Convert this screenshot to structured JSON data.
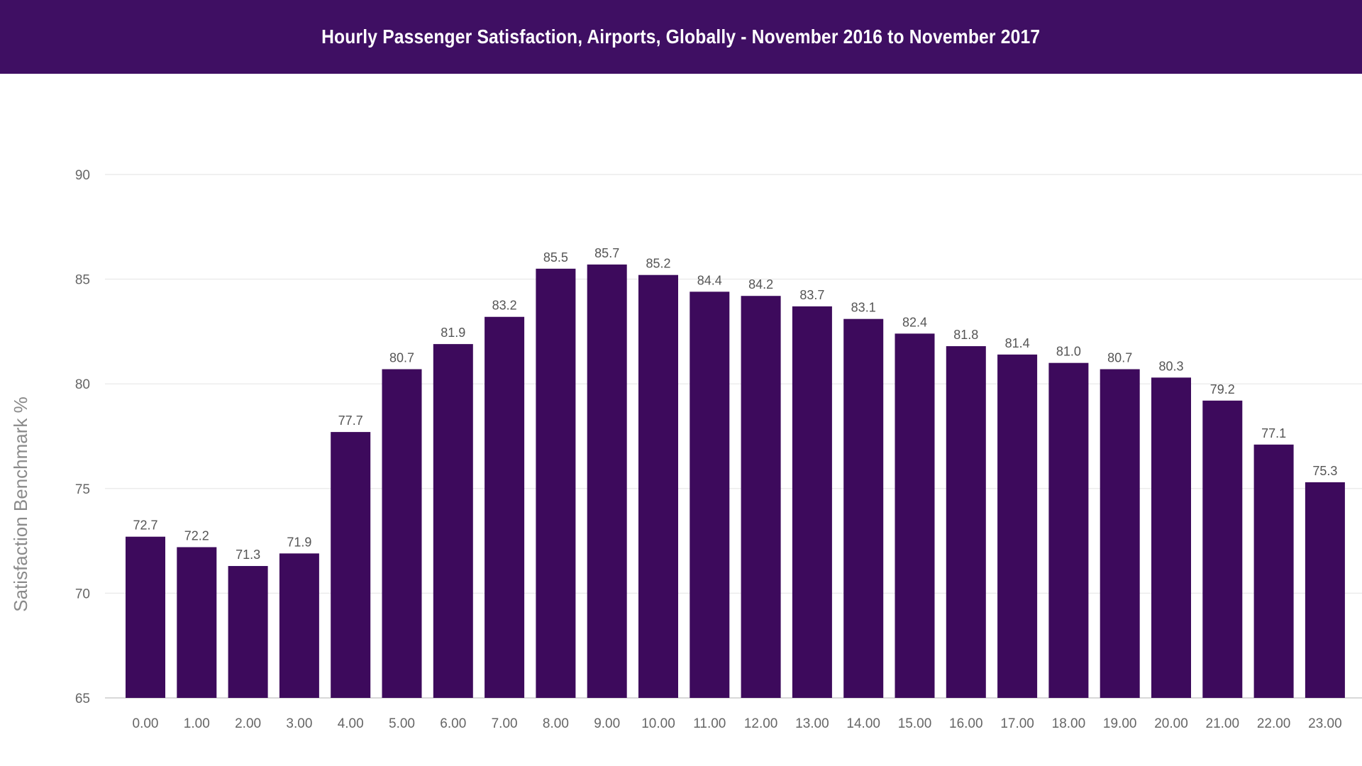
{
  "header": {
    "title": "Hourly Passenger Satisfaction, Airports, Globally - November 2016 to November 2017"
  },
  "colors": {
    "banner": "#3f0f63",
    "bar": "#3d0a5c",
    "grid": "#ececec",
    "axis": "#d8d8d8"
  },
  "chart_data": {
    "type": "bar",
    "title": "Hourly Passenger Satisfaction, Airports, Globally - November 2016 to November 2017",
    "xlabel": "",
    "ylabel": "Satisfaction Benchmark %",
    "ylim": [
      65,
      90
    ],
    "yticks": [
      65,
      70,
      75,
      80,
      85,
      90
    ],
    "grid": true,
    "categories": [
      "0.00",
      "1.00",
      "2.00",
      "3.00",
      "4.00",
      "5.00",
      "6.00",
      "7.00",
      "8.00",
      "9.00",
      "10.00",
      "11.00",
      "12.00",
      "13.00",
      "14.00",
      "15.00",
      "16.00",
      "17.00",
      "18.00",
      "19.00",
      "20.00",
      "21.00",
      "22.00",
      "23.00"
    ],
    "values": [
      72.7,
      72.2,
      71.3,
      71.9,
      77.7,
      80.7,
      81.9,
      83.2,
      85.5,
      85.7,
      85.2,
      84.4,
      84.2,
      83.7,
      83.1,
      82.4,
      81.8,
      81.4,
      81.0,
      80.7,
      80.3,
      79.2,
      77.1,
      75.3
    ],
    "data_labels": [
      "72.7",
      "72.2",
      "71.3",
      "71.9",
      "77.7",
      "80.7",
      "81.9",
      "83.2",
      "85.5",
      "85.7",
      "85.2",
      "84.4",
      "84.2",
      "83.7",
      "83.1",
      "82.4",
      "81.8",
      "81.4",
      "81.0",
      "80.7",
      "80.3",
      "79.2",
      "77.1",
      "75.3"
    ]
  }
}
